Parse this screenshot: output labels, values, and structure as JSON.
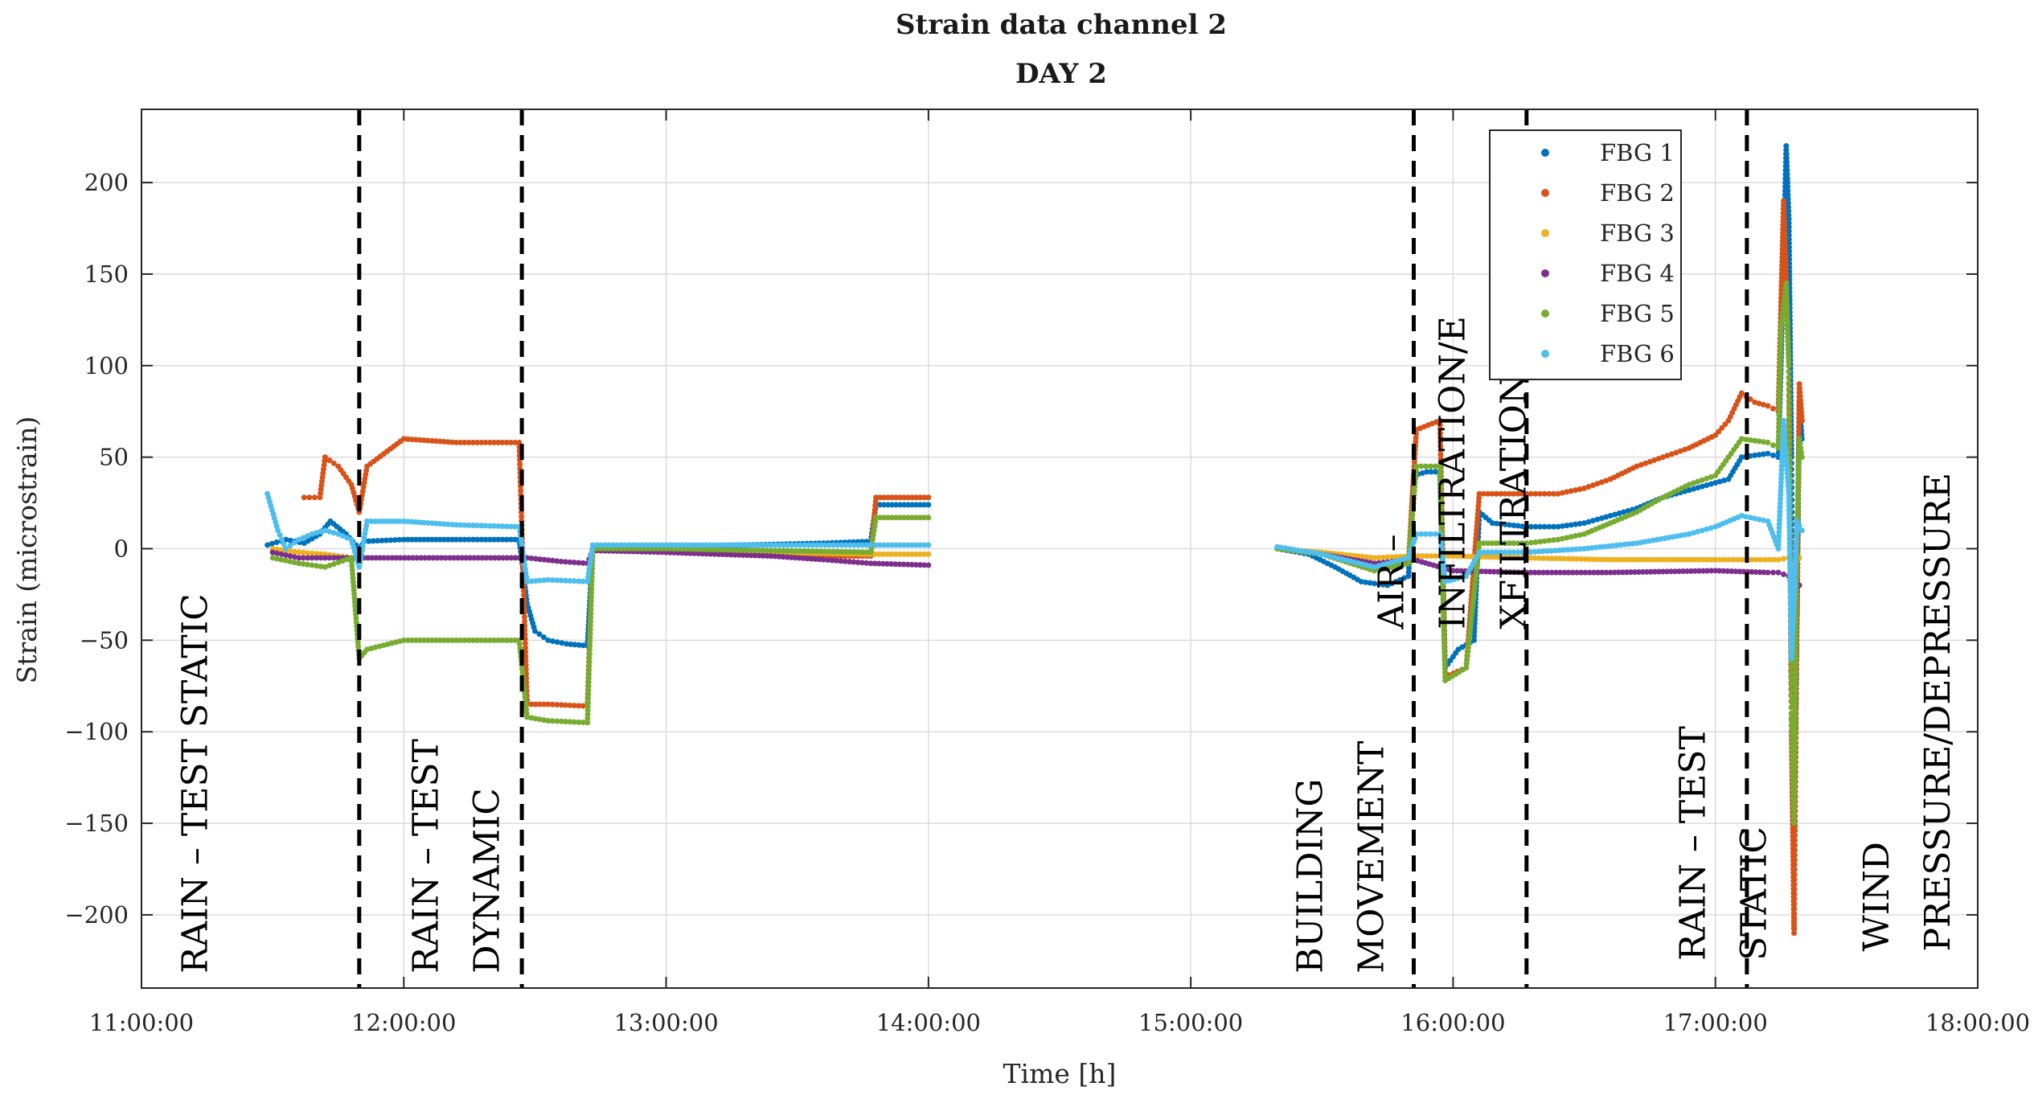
{
  "chart_data": {
    "type": "scatter",
    "title": "Strain data channel 2",
    "subtitle": "DAY 2",
    "xlabel": "Time [h]",
    "ylabel": "Strain (microstrain)",
    "xlim": [
      11.0,
      18.0
    ],
    "ylim": [
      -240,
      240
    ],
    "grid": true,
    "legend_position": "top-right",
    "x_ticks": [
      {
        "value": 11,
        "label": "11:00:00"
      },
      {
        "value": 12,
        "label": "12:00:00"
      },
      {
        "value": 13,
        "label": "13:00:00"
      },
      {
        "value": 14,
        "label": "14:00:00"
      },
      {
        "value": 15,
        "label": "15:00:00"
      },
      {
        "value": 16,
        "label": "16:00:00"
      },
      {
        "value": 17,
        "label": "17:00:00"
      },
      {
        "value": 18,
        "label": "18:00:00"
      }
    ],
    "y_ticks": [
      {
        "value": 200,
        "label": "200"
      },
      {
        "value": 150,
        "label": "150"
      },
      {
        "value": 100,
        "label": "100"
      },
      {
        "value": 50,
        "label": "50"
      },
      {
        "value": 0,
        "label": "0"
      },
      {
        "value": -50,
        "label": "−50"
      },
      {
        "value": -100,
        "label": "−100"
      },
      {
        "value": -150,
        "label": "−150"
      },
      {
        "value": -200,
        "label": "−200"
      }
    ],
    "phase_boundaries": [
      11.83,
      12.45,
      15.85,
      16.28,
      17.12
    ],
    "annotations": [
      {
        "lines": [
          "RAIN – TEST STATIC"
        ],
        "x": 11.25,
        "y": -232
      },
      {
        "lines": [
          "RAIN – TEST",
          "DYNAMIC"
        ],
        "x": 12.13,
        "y": -232
      },
      {
        "lines": [
          "BUILDING",
          "MOVEMENT"
        ],
        "x": 15.5,
        "y": -232
      },
      {
        "lines": [
          "AIR –",
          "INFILTRATION/E",
          "XFILTRATION"
        ],
        "x": 15.81,
        "y": -44
      },
      {
        "lines": [
          "RAIN – TEST",
          "STATIC"
        ],
        "x": 16.96,
        "y": -225
      },
      {
        "lines": [
          "WIND",
          "PRESSURE/DEPRESSURE"
        ],
        "x": 17.66,
        "y": -220
      }
    ],
    "series": [
      {
        "name": "FBG 1",
        "color": "#0072BD",
        "points": [
          [
            11.48,
            2
          ],
          [
            11.55,
            5
          ],
          [
            11.62,
            3
          ],
          [
            11.68,
            8
          ],
          [
            11.72,
            15
          ],
          [
            11.78,
            8
          ],
          [
            11.83,
            0
          ],
          [
            11.85,
            4
          ],
          [
            12.0,
            5
          ],
          [
            12.2,
            5
          ],
          [
            12.44,
            5
          ],
          [
            12.47,
            -30
          ],
          [
            12.5,
            -45
          ],
          [
            12.55,
            -50
          ],
          [
            12.62,
            -52
          ],
          [
            12.7,
            -53
          ],
          [
            12.72,
            0
          ],
          [
            13.0,
            1
          ],
          [
            13.3,
            2
          ],
          [
            13.6,
            3
          ],
          [
            13.78,
            4
          ],
          [
            13.8,
            24
          ],
          [
            14.0,
            24
          ],
          [
            15.33,
            0
          ],
          [
            15.45,
            -3
          ],
          [
            15.55,
            -10
          ],
          [
            15.65,
            -18
          ],
          [
            15.75,
            -20
          ],
          [
            15.83,
            -15
          ],
          [
            15.85,
            40
          ],
          [
            15.9,
            42
          ],
          [
            15.95,
            42
          ],
          [
            15.97,
            -65
          ],
          [
            16.02,
            -55
          ],
          [
            16.08,
            -50
          ],
          [
            16.1,
            20
          ],
          [
            16.15,
            14
          ],
          [
            16.28,
            12
          ],
          [
            16.4,
            12
          ],
          [
            16.5,
            14
          ],
          [
            16.6,
            18
          ],
          [
            16.7,
            22
          ],
          [
            16.8,
            28
          ],
          [
            16.9,
            32
          ],
          [
            17.0,
            36
          ],
          [
            17.05,
            38
          ],
          [
            17.1,
            50
          ],
          [
            17.2,
            52
          ],
          [
            17.24,
            50
          ],
          [
            17.25,
            100
          ],
          [
            17.27,
            220
          ],
          [
            17.28,
            180
          ],
          [
            17.29,
            50
          ],
          [
            17.3,
            -150
          ],
          [
            17.31,
            -50
          ],
          [
            17.32,
            80
          ],
          [
            17.33,
            60
          ]
        ]
      },
      {
        "name": "FBG 2",
        "color": "#D95319",
        "points": [
          [
            11.62,
            28
          ],
          [
            11.68,
            28
          ],
          [
            11.7,
            50
          ],
          [
            11.75,
            45
          ],
          [
            11.8,
            35
          ],
          [
            11.83,
            20
          ],
          [
            11.86,
            45
          ],
          [
            12.0,
            60
          ],
          [
            12.2,
            58
          ],
          [
            12.44,
            58
          ],
          [
            12.47,
            -85
          ],
          [
            12.55,
            -85
          ],
          [
            12.7,
            -86
          ],
          [
            12.72,
            0
          ],
          [
            13.0,
            -2
          ],
          [
            13.4,
            -4
          ],
          [
            13.78,
            -4
          ],
          [
            13.8,
            28
          ],
          [
            14.0,
            28
          ],
          [
            15.33,
            0
          ],
          [
            15.5,
            -3
          ],
          [
            15.7,
            -12
          ],
          [
            15.83,
            -8
          ],
          [
            15.86,
            65
          ],
          [
            15.95,
            70
          ],
          [
            15.97,
            -70
          ],
          [
            16.05,
            -65
          ],
          [
            16.1,
            30
          ],
          [
            16.28,
            30
          ],
          [
            16.4,
            30
          ],
          [
            16.5,
            33
          ],
          [
            16.6,
            38
          ],
          [
            16.7,
            45
          ],
          [
            16.8,
            50
          ],
          [
            16.9,
            55
          ],
          [
            17.0,
            62
          ],
          [
            17.05,
            70
          ],
          [
            17.1,
            85
          ],
          [
            17.15,
            80
          ],
          [
            17.2,
            78
          ],
          [
            17.24,
            75
          ],
          [
            17.26,
            190
          ],
          [
            17.28,
            100
          ],
          [
            17.29,
            -100
          ],
          [
            17.3,
            -210
          ],
          [
            17.31,
            -50
          ],
          [
            17.32,
            90
          ],
          [
            17.33,
            70
          ]
        ]
      },
      {
        "name": "FBG 3",
        "color": "#EDB120",
        "points": [
          [
            11.5,
            0
          ],
          [
            11.6,
            -2
          ],
          [
            11.7,
            -3
          ],
          [
            11.8,
            -5
          ],
          [
            12.72,
            0
          ],
          [
            13.0,
            -1
          ],
          [
            13.4,
            -2
          ],
          [
            13.78,
            -3
          ],
          [
            14.0,
            -3
          ],
          [
            15.33,
            0
          ],
          [
            15.5,
            -2
          ],
          [
            15.7,
            -5
          ],
          [
            15.85,
            -4
          ],
          [
            16.0,
            -4
          ],
          [
            16.28,
            -5
          ],
          [
            16.6,
            -6
          ],
          [
            17.0,
            -6
          ],
          [
            17.12,
            -6
          ],
          [
            17.24,
            -6
          ],
          [
            17.28,
            -5
          ],
          [
            17.3,
            -10
          ],
          [
            17.32,
            -5
          ]
        ]
      },
      {
        "name": "FBG 4",
        "color": "#7E2F8E",
        "points": [
          [
            11.5,
            -2
          ],
          [
            11.6,
            -5
          ],
          [
            11.7,
            -5
          ],
          [
            11.8,
            -5
          ],
          [
            12.44,
            -5
          ],
          [
            12.47,
            -5
          ],
          [
            12.6,
            -7
          ],
          [
            12.7,
            -8
          ],
          [
            12.72,
            -1
          ],
          [
            13.0,
            -2
          ],
          [
            13.4,
            -4
          ],
          [
            13.6,
            -6
          ],
          [
            13.78,
            -8
          ],
          [
            14.0,
            -9
          ],
          [
            15.33,
            0
          ],
          [
            15.5,
            -3
          ],
          [
            15.7,
            -8
          ],
          [
            15.85,
            -6
          ],
          [
            16.0,
            -12
          ],
          [
            16.28,
            -13
          ],
          [
            16.6,
            -13
          ],
          [
            17.0,
            -12
          ],
          [
            17.2,
            -13
          ],
          [
            17.24,
            -13
          ],
          [
            17.28,
            -15
          ],
          [
            17.3,
            -25
          ],
          [
            17.32,
            -20
          ]
        ]
      },
      {
        "name": "FBG 5",
        "color": "#77AC30",
        "points": [
          [
            11.5,
            -5
          ],
          [
            11.6,
            -8
          ],
          [
            11.7,
            -10
          ],
          [
            11.8,
            -5
          ],
          [
            11.83,
            -60
          ],
          [
            11.86,
            -55
          ],
          [
            12.0,
            -50
          ],
          [
            12.2,
            -50
          ],
          [
            12.44,
            -50
          ],
          [
            12.47,
            -92
          ],
          [
            12.55,
            -94
          ],
          [
            12.7,
            -95
          ],
          [
            12.72,
            0
          ],
          [
            13.0,
            0
          ],
          [
            13.4,
            -1
          ],
          [
            13.78,
            -2
          ],
          [
            13.8,
            17
          ],
          [
            14.0,
            17
          ],
          [
            15.33,
            0
          ],
          [
            15.5,
            -3
          ],
          [
            15.7,
            -12
          ],
          [
            15.83,
            -8
          ],
          [
            15.86,
            45
          ],
          [
            15.95,
            45
          ],
          [
            15.97,
            -72
          ],
          [
            16.05,
            -65
          ],
          [
            16.1,
            3
          ],
          [
            16.28,
            3
          ],
          [
            16.4,
            5
          ],
          [
            16.5,
            8
          ],
          [
            16.6,
            14
          ],
          [
            16.7,
            20
          ],
          [
            16.8,
            28
          ],
          [
            16.9,
            35
          ],
          [
            17.0,
            40
          ],
          [
            17.05,
            50
          ],
          [
            17.1,
            60
          ],
          [
            17.2,
            58
          ],
          [
            17.24,
            55
          ],
          [
            17.25,
            120
          ],
          [
            17.27,
            145
          ],
          [
            17.28,
            100
          ],
          [
            17.29,
            -90
          ],
          [
            17.3,
            -150
          ],
          [
            17.31,
            0
          ],
          [
            17.32,
            60
          ],
          [
            17.33,
            50
          ]
        ]
      },
      {
        "name": "FBG 6",
        "color": "#4DBEEE",
        "points": [
          [
            11.48,
            30
          ],
          [
            11.52,
            10
          ],
          [
            11.55,
            0
          ],
          [
            11.6,
            5
          ],
          [
            11.65,
            8
          ],
          [
            11.7,
            10
          ],
          [
            11.75,
            8
          ],
          [
            11.8,
            5
          ],
          [
            11.83,
            -10
          ],
          [
            11.86,
            15
          ],
          [
            12.0,
            15
          ],
          [
            12.2,
            13
          ],
          [
            12.44,
            12
          ],
          [
            12.47,
            -18
          ],
          [
            12.55,
            -17
          ],
          [
            12.7,
            -18
          ],
          [
            12.72,
            2
          ],
          [
            13.0,
            2
          ],
          [
            13.4,
            2
          ],
          [
            13.78,
            2
          ],
          [
            13.8,
            2
          ],
          [
            14.0,
            2
          ],
          [
            15.33,
            1
          ],
          [
            15.5,
            -3
          ],
          [
            15.7,
            -10
          ],
          [
            15.83,
            -5
          ],
          [
            15.86,
            8
          ],
          [
            15.95,
            8
          ],
          [
            15.97,
            -18
          ],
          [
            16.05,
            -15
          ],
          [
            16.1,
            -2
          ],
          [
            16.28,
            -2
          ],
          [
            16.5,
            0
          ],
          [
            16.7,
            3
          ],
          [
            16.9,
            8
          ],
          [
            17.0,
            12
          ],
          [
            17.1,
            18
          ],
          [
            17.2,
            15
          ],
          [
            17.24,
            0
          ],
          [
            17.26,
            70
          ],
          [
            17.28,
            30
          ],
          [
            17.29,
            -60
          ],
          [
            17.3,
            -30
          ],
          [
            17.31,
            15
          ],
          [
            17.33,
            10
          ]
        ]
      }
    ]
  }
}
